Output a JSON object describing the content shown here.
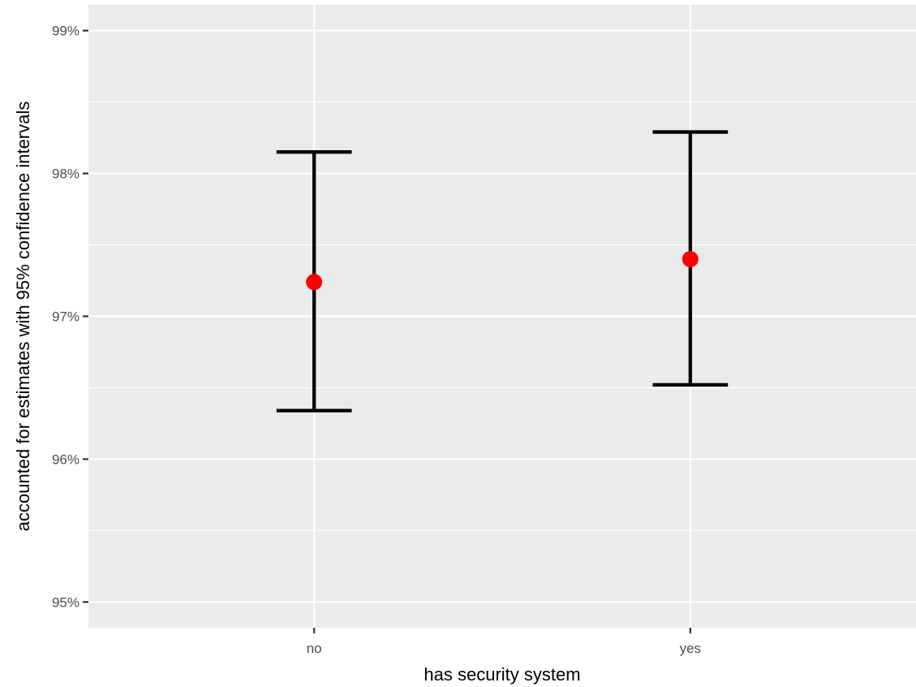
{
  "chart_data": {
    "type": "errorbar",
    "title": "",
    "xlabel": "has security system",
    "ylabel": "accounted for estimates with 95% confidence intervals",
    "categories": [
      "no",
      "yes"
    ],
    "series": [
      {
        "values": [
          97.24,
          97.4
        ],
        "lower": [
          96.34,
          96.52
        ],
        "upper": [
          98.15,
          98.29
        ]
      }
    ],
    "ylim": [
      94.82,
      99.18
    ],
    "yticks": [
      95,
      96,
      97,
      98,
      99
    ],
    "ytick_labels": [
      "95%",
      "96%",
      "97%",
      "98%",
      "99%"
    ],
    "grid": true,
    "legend": "none",
    "colors": {
      "panel": "#ebebeb",
      "grid": "#ffffff",
      "point": "#ff0000",
      "errorbar": "#000000",
      "tick_text": "#4d4d4d"
    }
  }
}
